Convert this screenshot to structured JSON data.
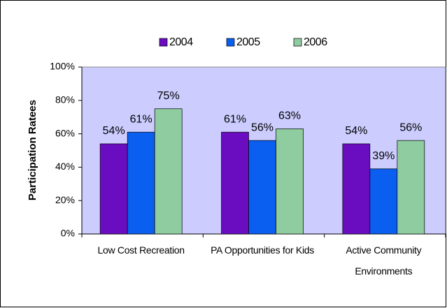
{
  "chart_data": {
    "type": "bar",
    "y_label": "Participation Ratees",
    "categories": [
      "Low Cost Recreation",
      "PA Opportunities for Kids",
      "Active Community Environments"
    ],
    "series": [
      {
        "name": "2004",
        "color": "#6a0dc0",
        "values": [
          54,
          61,
          54
        ],
        "value_labels": [
          "54%",
          "61%",
          "54%"
        ]
      },
      {
        "name": "2005",
        "color": "#0a5ef0",
        "values": [
          61,
          56,
          39
        ],
        "value_labels": [
          "61%",
          "56%",
          "39%"
        ]
      },
      {
        "name": "2006",
        "color": "#8fcca0",
        "values": [
          75,
          63,
          56
        ],
        "value_labels": [
          "75%",
          "63%",
          "56%"
        ]
      }
    ],
    "ylim": [
      0,
      100
    ],
    "yticks": [
      {
        "value": 0,
        "label": "0%"
      },
      {
        "value": 20,
        "label": "20%"
      },
      {
        "value": 40,
        "label": "40%"
      },
      {
        "value": 60,
        "label": "60%"
      },
      {
        "value": 80,
        "label": "80%"
      },
      {
        "value": 100,
        "label": "100%"
      }
    ],
    "grid": false,
    "legend": "top"
  }
}
